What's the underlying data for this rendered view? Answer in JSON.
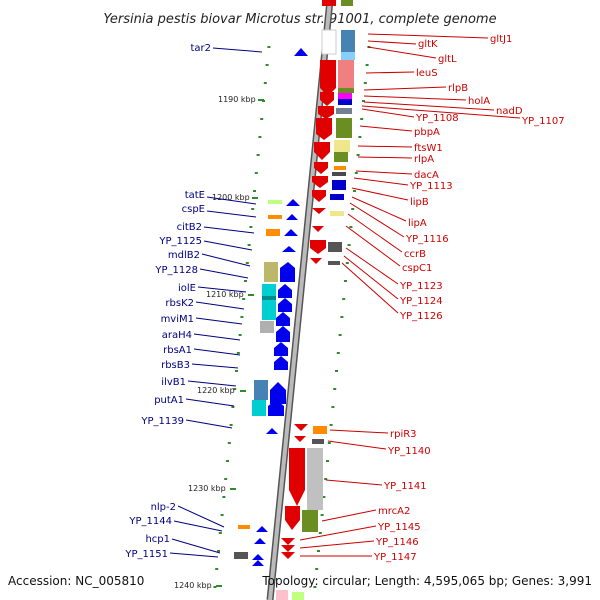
{
  "title": "Yersinia pestis biovar Microtus str. 91001, complete genome",
  "footer": {
    "accession": "Accession: NC_005810",
    "topology": "Topology: circular; Length: 4,595,065 bp; Genes: 3,991"
  },
  "colors": {
    "backbone": "#888888",
    "left_label": "#000080",
    "right_label": "#cc0000",
    "tick": "#2e8b2e"
  },
  "scale_labels": [
    {
      "label": "1190 kbp"
    },
    {
      "label": "1200 kbp"
    },
    {
      "label": "1210 kbp"
    },
    {
      "label": "1220 kbp"
    },
    {
      "label": "1230 kbp"
    },
    {
      "label": "1240 kbp"
    }
  ],
  "left_genes": [
    {
      "name": "tar2"
    },
    {
      "name": "tatE"
    },
    {
      "name": "cspE"
    },
    {
      "name": "citB2"
    },
    {
      "name": "YP_1125"
    },
    {
      "name": "mdlB2"
    },
    {
      "name": "YP_1128"
    },
    {
      "name": "iolE"
    },
    {
      "name": "rbsK2"
    },
    {
      "name": "mviM1"
    },
    {
      "name": "araH4"
    },
    {
      "name": "rbsA1"
    },
    {
      "name": "rbsB3"
    },
    {
      "name": "ilvB1"
    },
    {
      "name": "putA1"
    },
    {
      "name": "YP_1139"
    },
    {
      "name": "nlp-2"
    },
    {
      "name": "YP_1144"
    },
    {
      "name": "hcp1"
    },
    {
      "name": "YP_1151"
    }
  ],
  "right_genes": [
    {
      "name": "gltJ1"
    },
    {
      "name": "gltK"
    },
    {
      "name": "gltL"
    },
    {
      "name": "leuS"
    },
    {
      "name": "rlpB"
    },
    {
      "name": "holA"
    },
    {
      "name": "nadD"
    },
    {
      "name": "YP_1108"
    },
    {
      "name": "YP_1107"
    },
    {
      "name": "pbpA"
    },
    {
      "name": "ftsW1"
    },
    {
      "name": "rlpA"
    },
    {
      "name": "dacA"
    },
    {
      "name": "YP_1113"
    },
    {
      "name": "lipB"
    },
    {
      "name": "lipA"
    },
    {
      "name": "YP_1116"
    },
    {
      "name": "ccrB"
    },
    {
      "name": "cspC1"
    },
    {
      "name": "YP_1123"
    },
    {
      "name": "YP_1124"
    },
    {
      "name": "YP_1126"
    },
    {
      "name": "rpiR3"
    },
    {
      "name": "YP_1140"
    },
    {
      "name": "YP_1141"
    },
    {
      "name": "mrcA2"
    },
    {
      "name": "YP_1145"
    },
    {
      "name": "YP_1146"
    },
    {
      "name": "YP_1147"
    }
  ]
}
